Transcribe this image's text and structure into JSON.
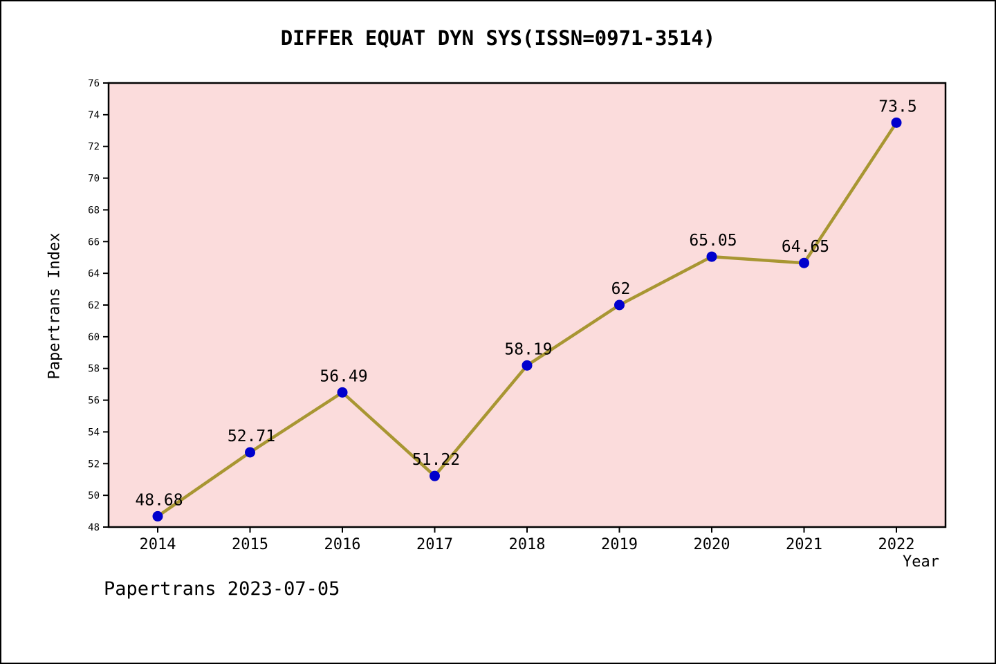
{
  "title": "DIFFER EQUAT DYN SYS(ISSN=0971-3514)",
  "footer": "Papertrans 2023-07-05",
  "chart_data": {
    "type": "line",
    "title": "DIFFER EQUAT DYN SYS(ISSN=0971-3514)",
    "xlabel": "Year",
    "ylabel": "Papertrans Index",
    "x": [
      "2014",
      "2015",
      "2016",
      "2017",
      "2018",
      "2019",
      "2020",
      "2021",
      "2022"
    ],
    "values": [
      48.68,
      52.71,
      56.49,
      51.22,
      58.19,
      62,
      65.05,
      64.65,
      73.5
    ],
    "point_labels": [
      "48.68",
      "52.71",
      "56.49",
      "51.22",
      "58.19",
      "62",
      "65.05",
      "64.65",
      "73.5"
    ],
    "ylim": [
      48,
      76
    ],
    "ytick_step": 2,
    "grid": false,
    "legend": "none",
    "colors": {
      "line": "#a89632",
      "marker": "#0000cd",
      "plot_bg": "#fbdcdc",
      "axis": "#000000",
      "text": "#000000"
    }
  }
}
